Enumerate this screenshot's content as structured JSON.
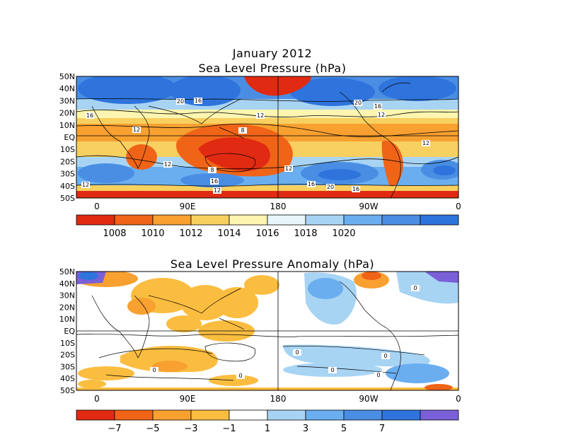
{
  "top_panel": {
    "title": "January 2012",
    "subtitle": "Sea Level Pressure (hPa)",
    "lat_labels": [
      "50N",
      "40N",
      "30N",
      "20N",
      "10N",
      "EQ",
      "10S",
      "20S",
      "30S",
      "40S",
      "50S"
    ],
    "lon_labels": [
      "0",
      "90E",
      "180",
      "90W",
      "0"
    ],
    "contour_labels": [
      "12",
      "8",
      "12",
      "20",
      "16",
      "16",
      "12",
      "20",
      "16",
      "12",
      "12",
      "12",
      "8",
      "16",
      "12",
      "12",
      "16",
      "20",
      "16"
    ],
    "colorbar": {
      "labels": [
        "1008",
        "1010",
        "1012",
        "1014",
        "1016",
        "1018",
        "1020"
      ],
      "colors": [
        "#e02a12",
        "#f06418",
        "#f8a030",
        "#f8d060",
        "#fdf5b0",
        "#e8f6fc",
        "#a8d4f4",
        "#6aaef0",
        "#4a8ee4",
        "#2e74dc"
      ]
    }
  },
  "bottom_panel": {
    "title": "Sea Level Pressure Anomaly (hPa)",
    "lat_labels": [
      "50N",
      "40N",
      "30N",
      "20N",
      "10N",
      "EQ",
      "10S",
      "20S",
      "30S",
      "40S",
      "50S"
    ],
    "lon_labels": [
      "0",
      "90E",
      "180",
      "90W",
      "0"
    ],
    "contour_labels": [
      "0",
      "0",
      "0",
      "0",
      "0",
      "0",
      "0"
    ],
    "colorbar": {
      "labels": [
        "−7",
        "−5",
        "−3",
        "−1",
        "1",
        "3",
        "5",
        "7"
      ],
      "colors": [
        "#e02a12",
        "#f06418",
        "#f8a030",
        "#fbbd40",
        "#ffffff",
        "#a8d4f4",
        "#6aaef0",
        "#4a8ee4",
        "#2e74dc",
        "#7a60d8"
      ]
    }
  }
}
